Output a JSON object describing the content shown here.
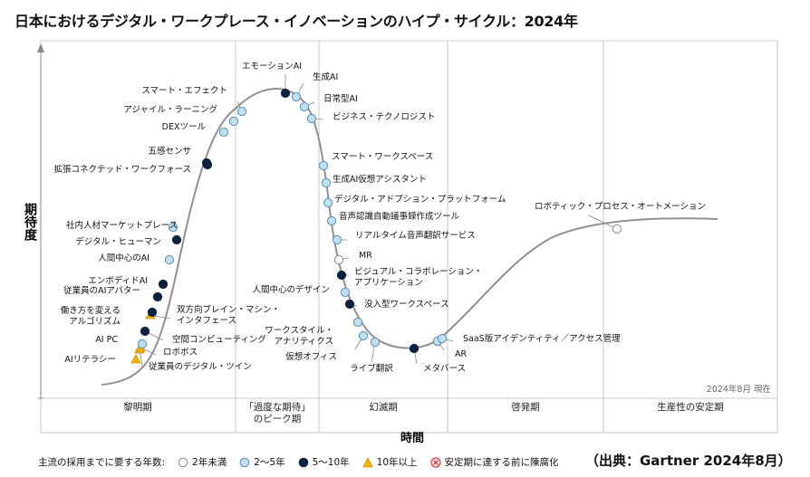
{
  "title": "日本におけるデジタル・ワークプレース・イノベーションのハイプ・サイクル：2024年",
  "source": "（出典：Gartner 2024年8月）",
  "legend": {
    "label": "主流の採用までに要する年数:",
    "items": [
      {
        "key": "lt2",
        "label": "2年未満",
        "symbol": "circle",
        "color": "#ffffff"
      },
      {
        "key": "2to5",
        "label": "2～5年",
        "symbol": "circle",
        "color": "#bfe0f2"
      },
      {
        "key": "5to10",
        "label": "5～10年",
        "symbol": "circle",
        "color": "#0d2240"
      },
      {
        "key": "gt10",
        "label": "10年以上",
        "symbol": "triangle",
        "color": "#f4b400"
      },
      {
        "key": "obsolete",
        "label": "安定期に達する前に陳腐化",
        "symbol": "x-circle",
        "color": "#e0303a"
      }
    ]
  },
  "chart_data": {
    "type": "scatter",
    "ylabel": "期待度",
    "xlabel": "時間",
    "as_of": "2024年8月 現在",
    "grid": false,
    "phases": [
      "黎明期",
      "「過度な期待」のピーク期",
      "幻滅期",
      "啓発期",
      "生産性の安定期"
    ],
    "technologies": [
      {
        "name": "AIリテラシー",
        "phase": "黎明期",
        "years": "10年以上"
      },
      {
        "name": "従業員のデジタル・ツイン",
        "phase": "黎明期",
        "years": "10年以上"
      },
      {
        "name": "ロボボス",
        "phase": "黎明期",
        "years": "10年以上"
      },
      {
        "name": "AI PC",
        "phase": "黎明期",
        "years": "2～5年"
      },
      {
        "name": "空間コンピューティング",
        "phase": "黎明期",
        "years": "5～10年"
      },
      {
        "name": "双方向ブレイン・マシン・インタフェース",
        "phase": "黎明期",
        "years": "10年以上"
      },
      {
        "name": "働き方を変えるアルゴリズム",
        "phase": "黎明期",
        "years": "5～10年"
      },
      {
        "name": "従業員のAIアバター",
        "phase": "黎明期",
        "years": "5～10年"
      },
      {
        "name": "エンボディドAI",
        "phase": "黎明期",
        "years": "5～10年"
      },
      {
        "name": "人間中心のAI",
        "phase": "黎明期",
        "years": "2～5年"
      },
      {
        "name": "デジタル・ヒューマン",
        "phase": "黎明期",
        "years": "5～10年"
      },
      {
        "name": "社内人材マーケットプレース",
        "phase": "黎明期",
        "years": "2～5年"
      },
      {
        "name": "拡張コネクテッド・ワークフォース",
        "phase": "黎明期",
        "years": "5～10年"
      },
      {
        "name": "五感センサ",
        "phase": "黎明期",
        "years": "5～10年"
      },
      {
        "name": "DEXツール",
        "phase": "「過度な期待」のピーク期",
        "years": "2～5年"
      },
      {
        "name": "アジャイル・ラーニング",
        "phase": "「過度な期待」のピーク期",
        "years": "2～5年"
      },
      {
        "name": "スマート・エフェクト",
        "phase": "「過度な期待」のピーク期",
        "years": "2～5年"
      },
      {
        "name": "エモーションAI",
        "phase": "「過度な期待」のピーク期",
        "years": "5～10年"
      },
      {
        "name": "生成AI",
        "phase": "「過度な期待」のピーク期",
        "years": "2～5年"
      },
      {
        "name": "日常型AI",
        "phase": "「過度な期待」のピーク期",
        "years": "2～5年"
      },
      {
        "name": "ビジネス・テクノロジスト",
        "phase": "「過度な期待」のピーク期",
        "years": "2～5年"
      },
      {
        "name": "スマート・ワークスペース",
        "phase": "幻滅期",
        "years": "2～5年"
      },
      {
        "name": "生成AI仮想アシスタント",
        "phase": "幻滅期",
        "years": "2～5年"
      },
      {
        "name": "デジタル・アドプション・プラットフォーム",
        "phase": "幻滅期",
        "years": "2～5年"
      },
      {
        "name": "音声認識自動議事録作成ツール",
        "phase": "幻滅期",
        "years": "2～5年"
      },
      {
        "name": "リアルタイム音声翻訳サービス",
        "phase": "幻滅期",
        "years": "2～5年"
      },
      {
        "name": "MR",
        "phase": "幻滅期",
        "years": "2年未満"
      },
      {
        "name": "ビジュアル・コラボレーション・アプリケーション",
        "phase": "幻滅期",
        "years": "5～10年"
      },
      {
        "name": "人間中心のデザイン",
        "phase": "幻滅期",
        "years": "2～5年"
      },
      {
        "name": "没入型ワークスペース",
        "phase": "幻滅期",
        "years": "5～10年"
      },
      {
        "name": "ワークスタイル・アナリティクス",
        "phase": "幻滅期",
        "years": "2～5年"
      },
      {
        "name": "仮想オフィス",
        "phase": "幻滅期",
        "years": "2～5年"
      },
      {
        "name": "ライブ翻訳",
        "phase": "幻滅期",
        "years": "2～5年"
      },
      {
        "name": "メタバース",
        "phase": "幻滅期",
        "years": "5～10年"
      },
      {
        "name": "AR",
        "phase": "幻滅期",
        "years": "2～5年"
      },
      {
        "name": "SaaS版アイデンティティ／アクセス管理",
        "phase": "幻滅期",
        "years": "2～5年"
      },
      {
        "name": "ロボティック・プロセス・オートメーション",
        "phase": "啓発期",
        "years": "2年未満"
      }
    ]
  }
}
